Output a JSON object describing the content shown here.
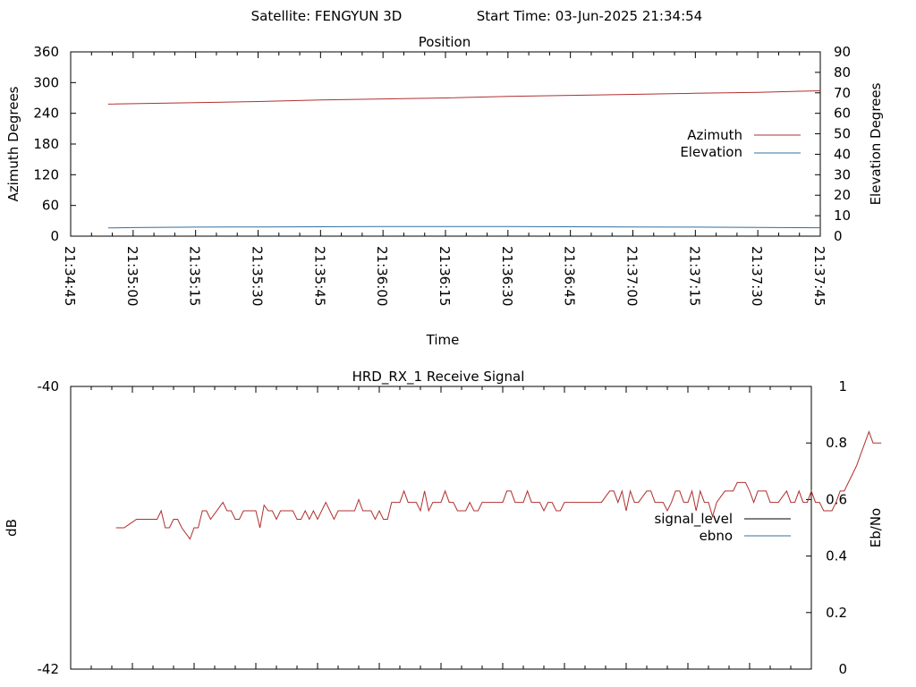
{
  "header": {
    "satellite": "Satellite: FENGYUN 3D",
    "start_time": "Start Time: 03-Jun-2025 21:34:54"
  },
  "chart_data": [
    {
      "type": "line",
      "title": "Position",
      "xlabel": "Time",
      "ylabel": "Azimuth Degrees",
      "y2label": "Elevation Degrees",
      "x_ticks": [
        "21:34:45",
        "21:35:00",
        "21:35:15",
        "21:35:30",
        "21:35:45",
        "21:36:00",
        "21:36:15",
        "21:36:30",
        "21:36:45",
        "21:37:00",
        "21:37:15",
        "21:37:30",
        "21:37:45"
      ],
      "xlim": [
        "21:34:45",
        "21:37:45"
      ],
      "ylim": [
        0,
        360
      ],
      "y_ticks": [
        "0",
        "60",
        "120",
        "180",
        "240",
        "300",
        "360"
      ],
      "y2lim": [
        0,
        90
      ],
      "y2_ticks": [
        "0",
        "10",
        "20",
        "30",
        "40",
        "50",
        "60",
        "70",
        "80",
        "90"
      ],
      "legend_position": "right",
      "series": [
        {
          "name": "Azimuth",
          "axis": "y",
          "color": "#b03030",
          "points": [
            [
              "21:34:54",
              258
            ],
            [
              "21:35:15",
              261
            ],
            [
              "21:35:30",
              263
            ],
            [
              "21:35:45",
              266
            ],
            [
              "21:36:00",
              268
            ],
            [
              "21:36:15",
              270
            ],
            [
              "21:36:30",
              273
            ],
            [
              "21:36:45",
              275
            ],
            [
              "21:37:00",
              277
            ],
            [
              "21:37:15",
              279
            ],
            [
              "21:37:30",
              281
            ],
            [
              "21:37:45",
              284
            ]
          ]
        },
        {
          "name": "Elevation",
          "axis": "y2",
          "color": "#3070a0",
          "points": [
            [
              "21:34:54",
              4.0
            ],
            [
              "21:35:00",
              4.2
            ],
            [
              "21:35:15",
              4.4
            ],
            [
              "21:35:30",
              4.5
            ],
            [
              "21:35:45",
              4.6
            ],
            [
              "21:36:00",
              4.7
            ],
            [
              "21:36:15",
              4.7
            ],
            [
              "21:36:30",
              4.7
            ],
            [
              "21:36:45",
              4.6
            ],
            [
              "21:37:00",
              4.5
            ],
            [
              "21:37:15",
              4.4
            ],
            [
              "21:37:30",
              4.3
            ],
            [
              "21:37:45",
              4.1
            ]
          ]
        }
      ]
    },
    {
      "type": "line",
      "title": "HRD_RX_1 Receive Signal",
      "xlabel": "",
      "ylabel": "dB",
      "y2label": "Eb/No",
      "ylim": [
        -42,
        -40
      ],
      "y_ticks": [
        "-40",
        "-42"
      ],
      "y2lim": [
        0,
        1
      ],
      "y2_ticks": [
        "0",
        "0.2",
        "0.4",
        "0.6",
        "0.8",
        "1"
      ],
      "xlim": [
        "21:34:45",
        "21:37:45"
      ],
      "x_minor_ticks": 36,
      "legend_position": "right",
      "legend": [
        {
          "name": "signal_level",
          "color": "#000000"
        },
        {
          "name": "ebno",
          "color": "#3070a0"
        }
      ],
      "series": [
        {
          "name": "ebno",
          "axis": "y2",
          "color": "#b03030",
          "step_seconds": 1,
          "start": "21:34:56",
          "values": [
            0.5,
            0.5,
            0.5,
            0.51,
            0.52,
            0.53,
            0.53,
            0.53,
            0.53,
            0.53,
            0.53,
            0.56,
            0.5,
            0.5,
            0.53,
            0.53,
            0.5,
            0.48,
            0.46,
            0.5,
            0.5,
            0.56,
            0.56,
            0.53,
            0.55,
            0.57,
            0.59,
            0.56,
            0.56,
            0.53,
            0.53,
            0.56,
            0.56,
            0.56,
            0.56,
            0.5,
            0.58,
            0.56,
            0.56,
            0.53,
            0.56,
            0.56,
            0.56,
            0.56,
            0.53,
            0.53,
            0.56,
            0.53,
            0.56,
            0.53,
            0.56,
            0.59,
            0.56,
            0.53,
            0.56,
            0.56,
            0.56,
            0.56,
            0.56,
            0.6,
            0.56,
            0.56,
            0.56,
            0.53,
            0.56,
            0.53,
            0.53,
            0.59,
            0.59,
            0.59,
            0.63,
            0.59,
            0.59,
            0.59,
            0.56,
            0.63,
            0.56,
            0.59,
            0.59,
            0.59,
            0.63,
            0.59,
            0.59,
            0.56,
            0.56,
            0.56,
            0.59,
            0.56,
            0.56,
            0.59,
            0.59,
            0.59,
            0.59,
            0.59,
            0.59,
            0.63,
            0.63,
            0.59,
            0.59,
            0.59,
            0.63,
            0.59,
            0.59,
            0.59,
            0.56,
            0.59,
            0.59,
            0.56,
            0.56,
            0.59,
            0.59,
            0.59,
            0.59,
            0.59,
            0.59,
            0.59,
            0.59,
            0.59,
            0.59,
            0.61,
            0.63,
            0.63,
            0.59,
            0.63,
            0.56,
            0.63,
            0.59,
            0.59,
            0.61,
            0.63,
            0.63,
            0.59,
            0.59,
            0.59,
            0.56,
            0.59,
            0.63,
            0.63,
            0.59,
            0.59,
            0.63,
            0.56,
            0.63,
            0.59,
            0.59,
            0.54,
            0.59,
            0.61,
            0.63,
            0.63,
            0.63,
            0.66,
            0.66,
            0.66,
            0.63,
            0.59,
            0.63,
            0.63,
            0.63,
            0.59,
            0.59,
            0.59,
            0.61,
            0.63,
            0.59,
            0.59,
            0.63,
            0.59,
            0.59,
            0.63,
            0.59,
            0.59,
            0.56,
            0.56,
            0.56,
            0.59,
            0.63,
            0.63,
            0.66,
            0.69,
            0.72,
            0.76,
            0.8,
            0.84,
            0.8,
            0.8,
            0.8
          ]
        }
      ]
    }
  ]
}
